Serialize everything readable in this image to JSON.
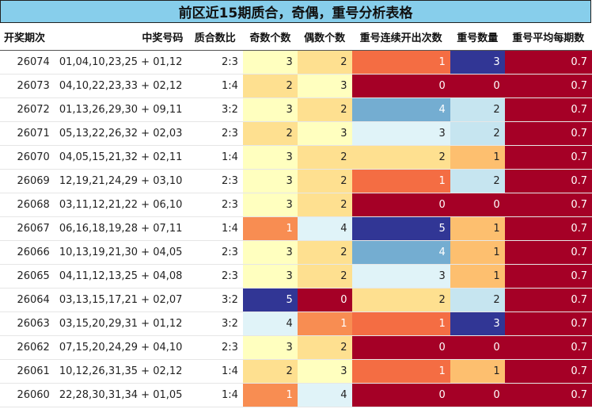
{
  "chart_data": {
    "type": "table",
    "title": "前区近15期质合，奇偶，重号分析表格",
    "columns": [
      "开奖期次",
      "中奖号码",
      "质合数比",
      "奇数个数",
      "偶数个数",
      "重号连续开出次数",
      "重号数量",
      "重号平均每期数"
    ],
    "rows": [
      [
        "26074",
        "01,04,10,23,25 + 01,12",
        "2:3",
        3,
        2,
        1,
        3,
        0.7
      ],
      [
        "26073",
        "04,10,22,23,33 + 02,12",
        "1:4",
        2,
        3,
        0,
        0,
        0.7
      ],
      [
        "26072",
        "01,13,26,29,30 + 09,11",
        "3:2",
        3,
        2,
        4,
        2,
        0.7
      ],
      [
        "26071",
        "05,13,22,26,32 + 02,03",
        "2:3",
        2,
        3,
        3,
        2,
        0.7
      ],
      [
        "26070",
        "04,05,15,21,32 + 02,11",
        "1:4",
        3,
        2,
        2,
        1,
        0.7
      ],
      [
        "26069",
        "12,19,21,24,29 + 03,10",
        "2:3",
        3,
        2,
        1,
        2,
        0.7
      ],
      [
        "26068",
        "03,11,12,21,22 + 06,10",
        "2:3",
        3,
        2,
        0,
        0,
        0.7
      ],
      [
        "26067",
        "06,16,18,19,28 + 07,11",
        "1:4",
        1,
        4,
        5,
        1,
        0.7
      ],
      [
        "26066",
        "10,13,19,21,30 + 04,05",
        "2:3",
        3,
        2,
        4,
        1,
        0.7
      ],
      [
        "26065",
        "04,11,12,13,25 + 04,08",
        "2:3",
        3,
        2,
        3,
        1,
        0.7
      ],
      [
        "26064",
        "03,13,15,17,21 + 02,07",
        "3:2",
        5,
        0,
        2,
        2,
        0.7
      ],
      [
        "26063",
        "03,15,20,29,31 + 01,12",
        "3:2",
        4,
        1,
        1,
        3,
        0.7
      ],
      [
        "26062",
        "07,15,20,24,29 + 04,10",
        "2:3",
        3,
        2,
        0,
        0,
        0.7
      ],
      [
        "26061",
        "10,12,26,31,35 + 02,12",
        "1:4",
        2,
        3,
        1,
        1,
        0.7
      ],
      [
        "26060",
        "22,28,30,31,34 + 01,05",
        "1:4",
        1,
        4,
        0,
        0,
        0.7
      ]
    ],
    "heatmap_columns": [
      "奇数个数",
      "偶数个数",
      "重号连续开出次数",
      "重号数量",
      "重号平均每期数"
    ],
    "colormap": "RdYlBu",
    "colors": {
      "odd_even": {
        "0": "#a50026",
        "1": "#f88d52",
        "2": "#fee090",
        "3": "#ffffbf",
        "4": "#e0f3f8",
        "5": "#313695"
      },
      "conn": {
        "0": "#a50026",
        "1": "#f46d43",
        "2": "#fee090",
        "3": "#e0f3f8",
        "4": "#74add1",
        "5": "#313695"
      },
      "cnt": {
        "0": "#a50026",
        "1": "#fdbf6f",
        "2": "#c6e5f0",
        "3": "#313695"
      },
      "avg": "#a50026"
    }
  }
}
